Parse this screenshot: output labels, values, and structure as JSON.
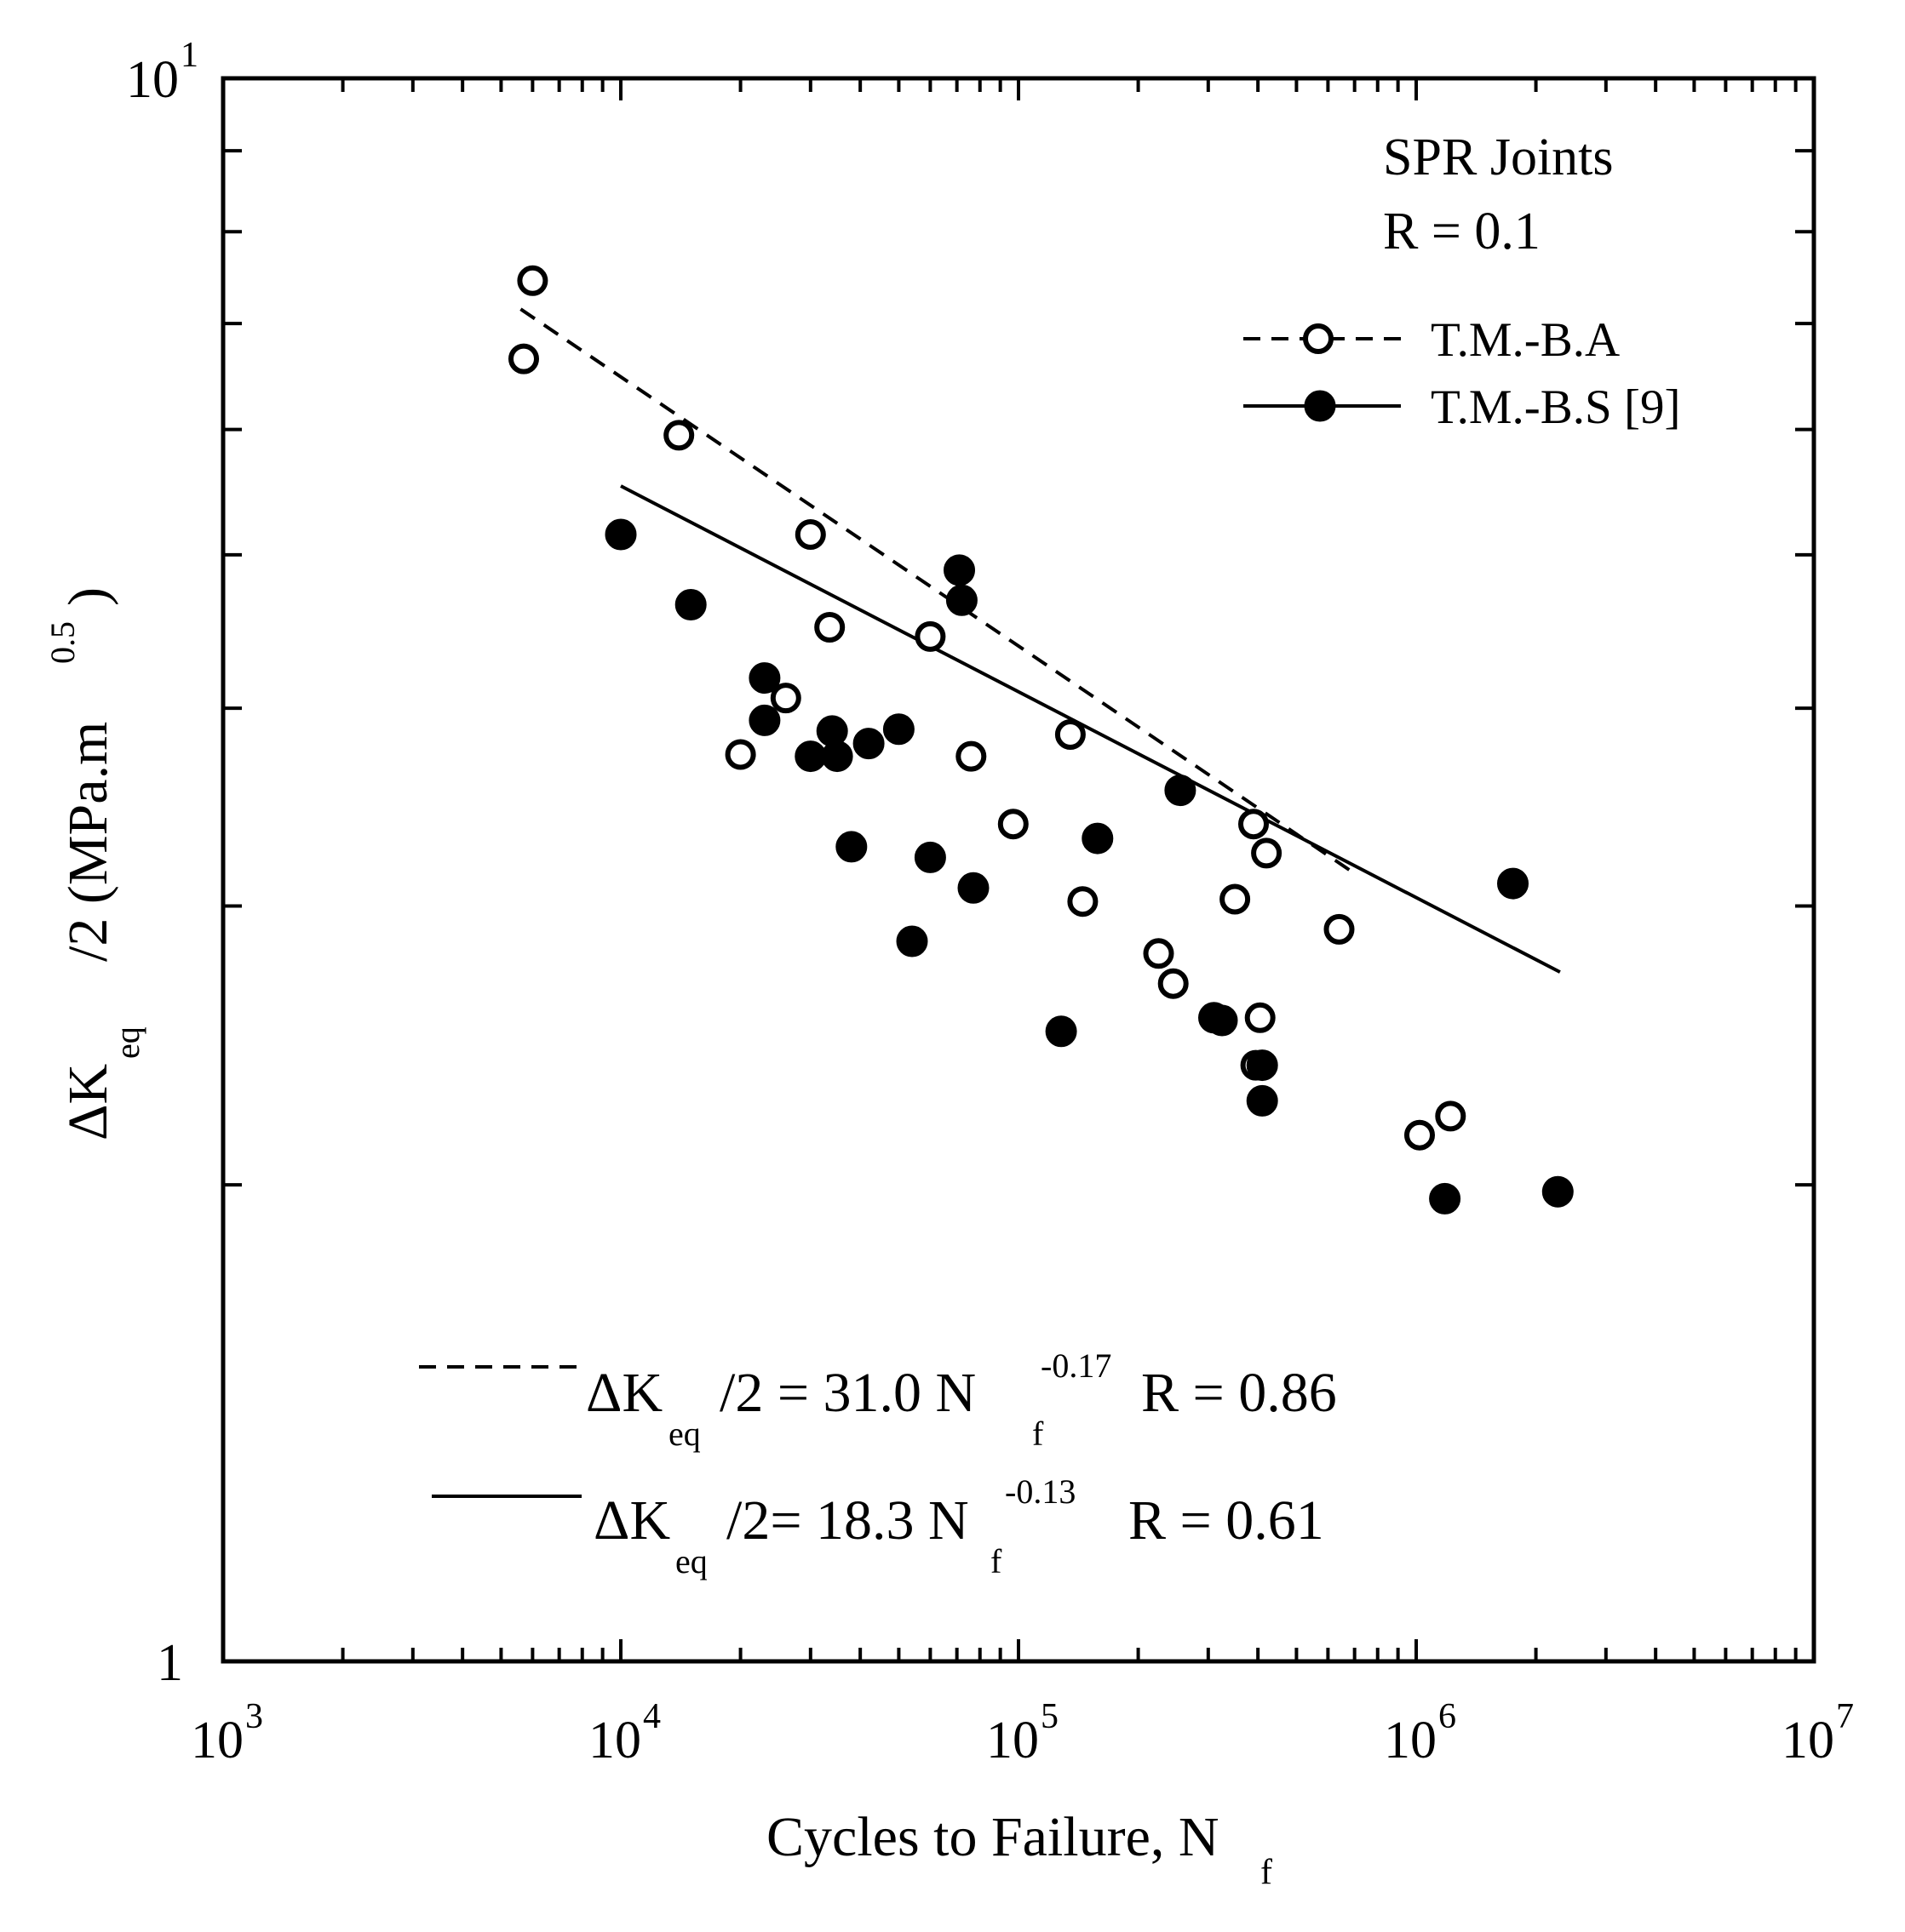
{
  "chart_data": {
    "type": "scatter",
    "x_scale": "log",
    "y_scale": "log",
    "xlim": [
      1000,
      10000000
    ],
    "ylim": [
      1,
      10
    ],
    "xlabel": {
      "main": "Cycles to Failure, N",
      "sub": "f"
    },
    "ylabel": {
      "delta": "ΔK",
      "sub": "eq",
      "rest": "/2 (MPa.m",
      "sup": "0.5",
      "close": ")"
    },
    "x_ticks": [
      {
        "value": 1000,
        "base": "10",
        "exp": "3"
      },
      {
        "value": 10000,
        "base": "10",
        "exp": "4"
      },
      {
        "value": 100000,
        "base": "10",
        "exp": "5"
      },
      {
        "value": 1000000,
        "base": "10",
        "exp": "6"
      },
      {
        "value": 10000000,
        "base": "10",
        "exp": "7"
      }
    ],
    "y_ticks": [
      {
        "value": 1,
        "base": "1",
        "exp": ""
      },
      {
        "value": 10,
        "base": "10",
        "exp": "1"
      }
    ],
    "annotation": {
      "line1": "SPR Joints",
      "line2": "R = 0.1"
    },
    "series": [
      {
        "name": "T.M.-B.A",
        "marker": "open-circle",
        "line_style": "dashed",
        "fit": {
          "a": 31.0,
          "b": -0.17,
          "x_range": [
            5600,
            680000
          ]
        },
        "equation": {
          "delta": "ΔK",
          "sub": "eq",
          "mid": "/2 = 31.0  N",
          "nsub": "f",
          "exp": "-0.17",
          "r": "R = 0.86"
        },
        "x": [
          6000,
          5700,
          14000,
          30000,
          33500,
          20000,
          26000,
          60000,
          76000,
          135000,
          97000,
          145000,
          225000,
          245000,
          390000,
          420000,
          350000,
          640000,
          405000,
          395000,
          1020000,
          1220000
        ],
        "y": [
          7.45,
          6.65,
          5.95,
          5.15,
          4.5,
          3.74,
          4.06,
          4.44,
          3.73,
          3.85,
          3.38,
          3.02,
          2.8,
          2.68,
          3.38,
          3.24,
          3.03,
          2.9,
          2.55,
          2.38,
          2.15,
          2.21
        ]
      },
      {
        "name": "T.M.-B.S [9]",
        "marker": "filled-circle",
        "line_style": "solid",
        "fit": {
          "a": 18.3,
          "b": -0.13,
          "x_range": [
            10000,
            2300000
          ]
        },
        "equation": {
          "delta": "ΔK",
          "sub": "eq",
          "mid": "/2= 18.3 N",
          "nsub": "f",
          "exp": "-0.13",
          "r": "R = 0.61"
        },
        "x": [
          10000,
          15000,
          23000,
          23000,
          34000,
          30000,
          35000,
          42000,
          50000,
          38000,
          60000,
          71000,
          72000,
          77000,
          54000,
          128000,
          158000,
          255000,
          310000,
          325000,
          410000,
          410000,
          1750000,
          1180000,
          2270000
        ],
        "y": [
          5.15,
          4.65,
          4.18,
          3.93,
          3.87,
          3.73,
          3.73,
          3.8,
          3.88,
          3.27,
          3.22,
          4.89,
          4.68,
          3.08,
          2.85,
          2.5,
          3.31,
          3.55,
          2.55,
          2.54,
          2.38,
          2.26,
          3.1,
          1.96,
          1.98
        ]
      }
    ]
  }
}
